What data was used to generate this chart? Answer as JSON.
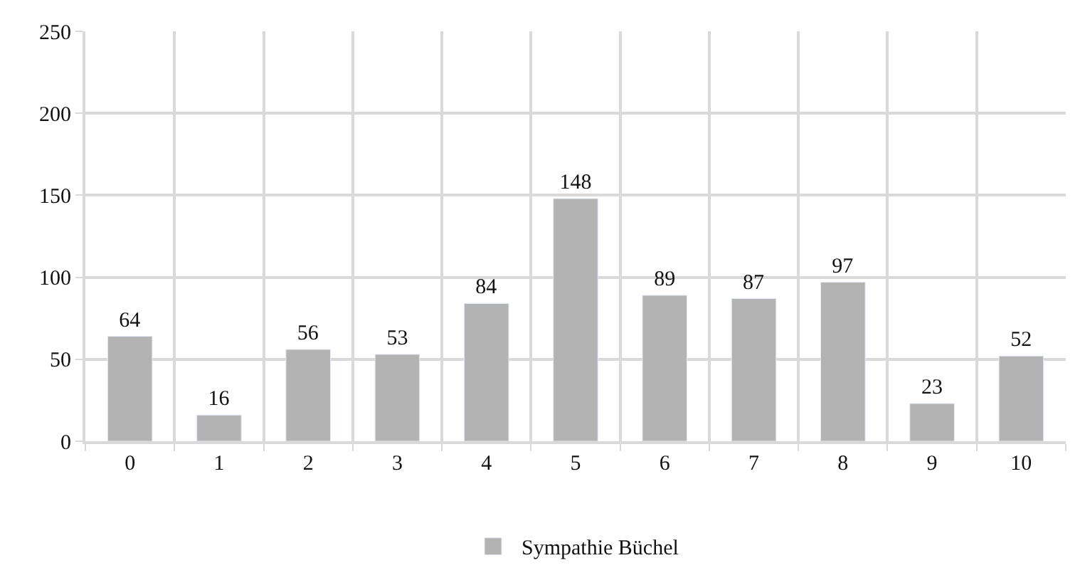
{
  "chart_data": {
    "type": "bar",
    "categories": [
      "0",
      "1",
      "2",
      "3",
      "4",
      "5",
      "6",
      "7",
      "8",
      "9",
      "10"
    ],
    "series": [
      {
        "name": "Sympathie Büchel",
        "color": "#b3b3b3",
        "values": [
          64,
          16,
          56,
          53,
          84,
          148,
          89,
          87,
          97,
          23,
          52
        ]
      }
    ],
    "ylim": [
      0,
      250
    ],
    "yticks": [
      0,
      50,
      100,
      150,
      200,
      250
    ],
    "grid": true,
    "legend": "bottom",
    "data_labels": true
  }
}
